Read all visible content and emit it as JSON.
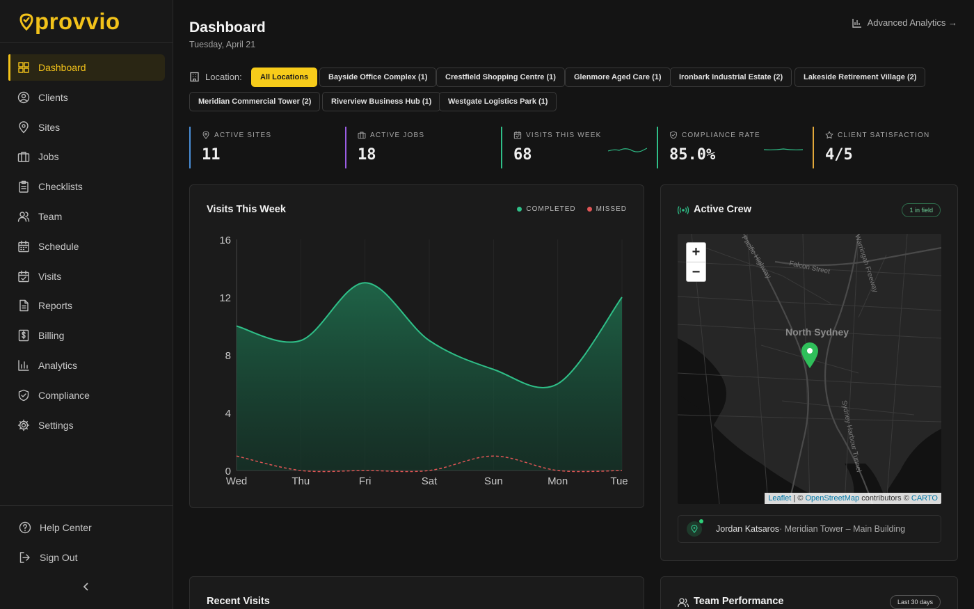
{
  "app": {
    "logo_text": "provvio",
    "brand_color": "#f2c21a"
  },
  "sidebar": {
    "items": [
      {
        "label": "Dashboard",
        "icon": "grid-icon",
        "active": true
      },
      {
        "label": "Clients",
        "icon": "user-circle-icon"
      },
      {
        "label": "Sites",
        "icon": "map-pin-icon"
      },
      {
        "label": "Jobs",
        "icon": "briefcase-icon"
      },
      {
        "label": "Checklists",
        "icon": "clipboard-icon"
      },
      {
        "label": "Team",
        "icon": "users-icon"
      },
      {
        "label": "Schedule",
        "icon": "calendar-icon"
      },
      {
        "label": "Visits",
        "icon": "calendar-check-icon"
      },
      {
        "label": "Reports",
        "icon": "file-text-icon"
      },
      {
        "label": "Billing",
        "icon": "dollar-icon"
      },
      {
        "label": "Analytics",
        "icon": "bar-chart-icon"
      },
      {
        "label": "Compliance",
        "icon": "shield-check-icon"
      },
      {
        "label": "Settings",
        "icon": "gear-icon"
      }
    ],
    "footer": [
      {
        "label": "Help Center",
        "icon": "help-circle-icon"
      },
      {
        "label": "Sign Out",
        "icon": "sign-out-icon"
      }
    ]
  },
  "header": {
    "title": "Dashboard",
    "date": "Tuesday, April 21",
    "advanced_link": "Advanced Analytics →"
  },
  "locations": {
    "label": "Location:",
    "chips": [
      "All Locations",
      "Bayside Office Complex (1)",
      "Crestfield Shopping Centre (1)",
      "Glenmore Aged Care (1)",
      "Ironbark Industrial Estate (2)",
      "Lakeside Retirement Village (2)",
      "Meridian Commercial Tower (2)",
      "Riverview Business Hub (1)",
      "Westgate Logistics Park (1)"
    ]
  },
  "stats": [
    {
      "label": "ACTIVE SITES",
      "value": "11",
      "icon": "map-pin-icon",
      "color": "#4a90d9"
    },
    {
      "label": "ACTIVE JOBS",
      "value": "18",
      "icon": "briefcase-icon",
      "color": "#9b5de5"
    },
    {
      "label": "VISITS THIS WEEK",
      "value": "68",
      "icon": "calendar-check-icon",
      "color": "#2fbf88"
    },
    {
      "label": "COMPLIANCE RATE",
      "value": "85.0%",
      "icon": "shield-check-icon",
      "color": "#2fbf88"
    },
    {
      "label": "CLIENT SATISFACTION",
      "value": "4/5",
      "icon": "star-icon",
      "color": "#e2a83a"
    }
  ],
  "visits_card": {
    "title": "Visits This Week",
    "legend_completed": "COMPLETED",
    "legend_missed": "MISSED"
  },
  "chart_data": {
    "type": "area",
    "categories": [
      "Wed",
      "Thu",
      "Fri",
      "Sat",
      "Sun",
      "Mon",
      "Tue"
    ],
    "series": [
      {
        "name": "COMPLETED",
        "values": [
          10,
          9,
          13,
          9,
          7,
          6,
          12
        ],
        "color": "#2fbf88"
      },
      {
        "name": "MISSED",
        "values": [
          1,
          0,
          0,
          0,
          1,
          0,
          0
        ],
        "color": "#e05555"
      }
    ],
    "y_ticks": [
      "16",
      "12",
      "8",
      "4",
      "0"
    ],
    "ylim": [
      0,
      16
    ],
    "grid": true,
    "legend": "top-right"
  },
  "crew_card": {
    "title": "Active Crew",
    "badge": "1 in field",
    "map_place": "North Sydney",
    "map_streets": [
      "Falcon Street",
      "Warringah Freeway",
      "Pacific Highway",
      "Sydney Harbour Tunnel"
    ],
    "attribution_leaflet": "Leaflet",
    "attribution_sep": " | © ",
    "attribution_osm": "OpenStreetMap",
    "attribution_mid": " contributors © ",
    "attribution_carto": "CARTO",
    "crew_name": "Jordan Katsaros",
    "crew_location": " · Meridian Tower – Main Building"
  },
  "bottom": {
    "recent_visits": "Recent Visits",
    "team_performance": "Team Performance",
    "team_badge": "Last 30 days"
  }
}
